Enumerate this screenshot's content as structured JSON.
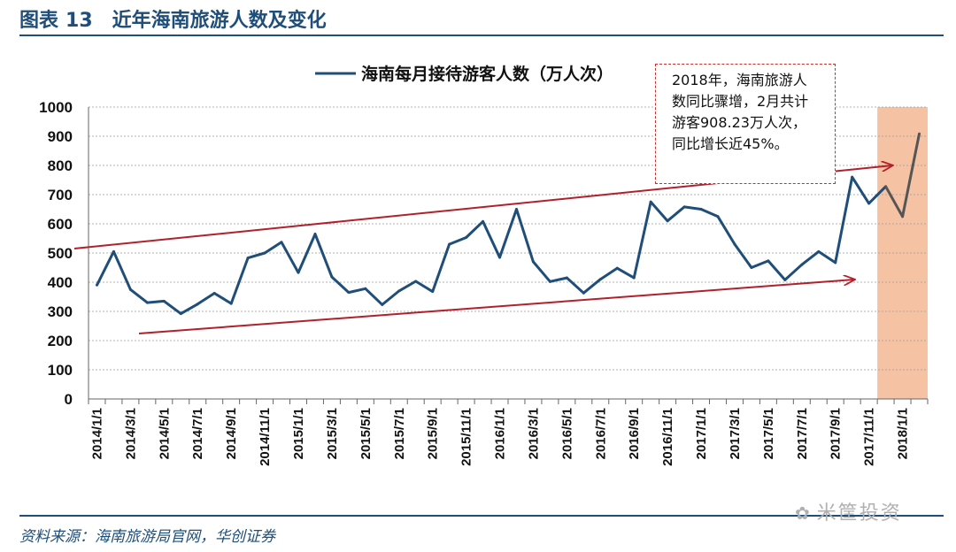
{
  "figure": {
    "label": "图表",
    "number": "13",
    "title": "近年海南旅游人数及变化"
  },
  "source": "资料来源：海南旅游局官网，华创证券",
  "watermark": "米筐投资",
  "colors": {
    "line": "#1f4e79",
    "line_highlight": "#555555",
    "arrow": "#b2212b",
    "highlight_fill": "#f5c3a4",
    "grid": "#9a9a9a"
  },
  "chart_data": {
    "type": "line",
    "title": "",
    "xlabel": "",
    "ylabel": "",
    "ylim": [
      0,
      1000
    ],
    "yticks": [
      0,
      100,
      200,
      300,
      400,
      500,
      600,
      700,
      800,
      900,
      1000
    ],
    "grid": true,
    "legend_position": "top",
    "x_tick_labels": [
      "2014/1/1",
      "2014/3/1",
      "2014/5/1",
      "2014/7/1",
      "2014/9/1",
      "2014/11/1",
      "2015/1/1",
      "2015/3/1",
      "2015/5/1",
      "2015/7/1",
      "2015/9/1",
      "2015/11/1",
      "2016/1/1",
      "2016/3/1",
      "2016/5/1",
      "2016/7/1",
      "2016/9/1",
      "2016/11/1",
      "2017/1/1",
      "2017/3/1",
      "2017/5/1",
      "2017/7/1",
      "2017/9/1",
      "2017/11/1",
      "2018/1/1"
    ],
    "series": [
      {
        "name": "海南每月接待游客人数（万人次）",
        "x": [
          "2014/1",
          "2014/2",
          "2014/3",
          "2014/4",
          "2014/5",
          "2014/6",
          "2014/7",
          "2014/8",
          "2014/9",
          "2014/10",
          "2014/11",
          "2014/12",
          "2015/1",
          "2015/2",
          "2015/3",
          "2015/4",
          "2015/5",
          "2015/6",
          "2015/7",
          "2015/8",
          "2015/9",
          "2015/10",
          "2015/11",
          "2015/12",
          "2016/1",
          "2016/2",
          "2016/3",
          "2016/4",
          "2016/5",
          "2016/6",
          "2016/7",
          "2016/8",
          "2016/9",
          "2016/10",
          "2016/11",
          "2016/12",
          "2017/1",
          "2017/2",
          "2017/3",
          "2017/4",
          "2017/5",
          "2017/6",
          "2017/7",
          "2017/8",
          "2017/9",
          "2017/10",
          "2017/11",
          "2017/12",
          "2018/1",
          "2018/2"
        ],
        "values": [
          390,
          505,
          375,
          330,
          335,
          292,
          325,
          362,
          327,
          483,
          500,
          537,
          433,
          565,
          418,
          365,
          378,
          323,
          370,
          403,
          368,
          530,
          553,
          608,
          485,
          650,
          470,
          402,
          415,
          363,
          410,
          448,
          415,
          675,
          610,
          658,
          650,
          625,
          530,
          450,
          473,
          408,
          460,
          505,
          467,
          760,
          670,
          728,
          625,
          908.23
        ]
      }
    ],
    "highlight_range": [
      "2017/12",
      "2018/2"
    ],
    "annotations": [
      {
        "lines": [
          "2018年，海南旅游人",
          "数同比骤增，2月共计",
          "游客908.23万人次，",
          "同比增长近45%。"
        ]
      }
    ]
  }
}
